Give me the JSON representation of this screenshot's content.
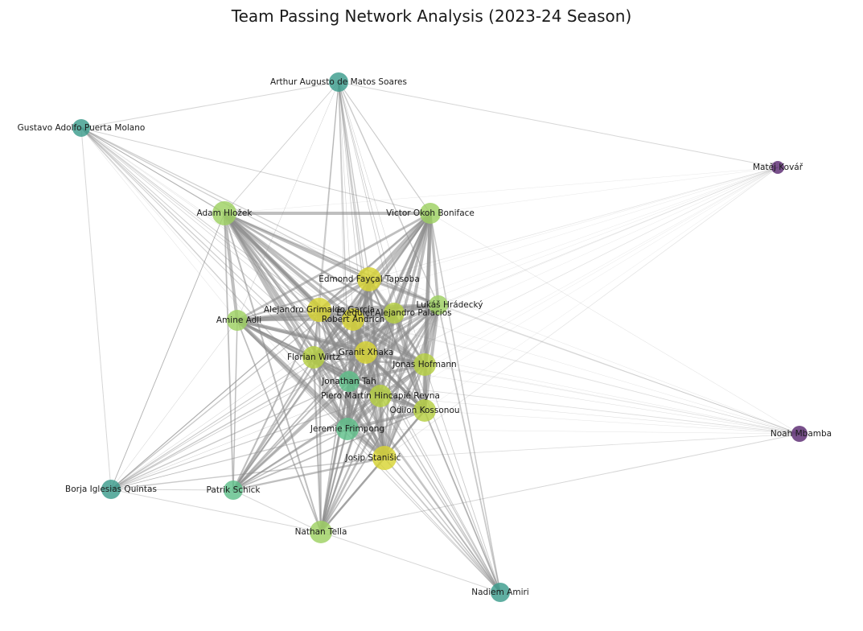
{
  "title": "Team Passing Network Analysis (2023-24 Season)",
  "colors": {
    "edge": "#8a8a8a",
    "node_yellow": "#d8d433",
    "node_lightgreen": "#9ed162",
    "node_green": "#5fbf8a",
    "node_teal": "#3c9c8c",
    "node_purple": "#5a2a72",
    "label": "#1a1a1a"
  },
  "players": [
    {
      "id": "arthur",
      "name": "Arthur Augusto de Matos Soares",
      "group": "teal"
    },
    {
      "id": "gustavo",
      "name": "Gustavo Adolfo Puerta Molano",
      "group": "teal"
    },
    {
      "id": "matej",
      "name": "Matěj Kovář",
      "group": "purple"
    },
    {
      "id": "adam",
      "name": "Adam Hložek",
      "group": "lightgreen"
    },
    {
      "id": "victor",
      "name": "Victor Okoh Boniface",
      "group": "lightgreen"
    },
    {
      "id": "edmond",
      "name": "Edmond Fayçal Tapsoba",
      "group": "yellow"
    },
    {
      "id": "alejandro",
      "name": "Alejandro Grimaldo García",
      "group": "yellow"
    },
    {
      "id": "exequiel",
      "name": "Exequiel Alejandro Palacios",
      "group": "yellowgreen"
    },
    {
      "id": "robert",
      "name": "Robert Andrich",
      "group": "yellow"
    },
    {
      "id": "lukas",
      "name": "Lukáš Hrádecký",
      "group": "lightgreen"
    },
    {
      "id": "amine",
      "name": "Amine Adli",
      "group": "lightgreen"
    },
    {
      "id": "florian",
      "name": "Florian Wirtz",
      "group": "yellowgreen"
    },
    {
      "id": "granit",
      "name": "Granit Xhaka",
      "group": "yellow"
    },
    {
      "id": "jonas",
      "name": "Jonas Hofmann",
      "group": "yellowgreen"
    },
    {
      "id": "jonathan",
      "name": "Jonathan Tah",
      "group": "green"
    },
    {
      "id": "piero",
      "name": "Piero Martín Hincapié Reyna",
      "group": "yellowgreen"
    },
    {
      "id": "odilon",
      "name": "Odilon Kossonou",
      "group": "yellowgreen"
    },
    {
      "id": "jeremie",
      "name": "Jeremie Frimpong",
      "group": "green"
    },
    {
      "id": "josip",
      "name": "Josip Stanišić",
      "group": "yellow"
    },
    {
      "id": "noah",
      "name": "Noah Mbamba",
      "group": "purple"
    },
    {
      "id": "borja",
      "name": "Borja Iglesias Quintas",
      "group": "teal"
    },
    {
      "id": "patrik",
      "name": "Patrik Schick",
      "group": "green"
    },
    {
      "id": "nathan",
      "name": "Nathan Tella",
      "group": "lightgreen"
    },
    {
      "id": "nadiem",
      "name": "Nadiem Amiri",
      "group": "teal"
    }
  ]
}
